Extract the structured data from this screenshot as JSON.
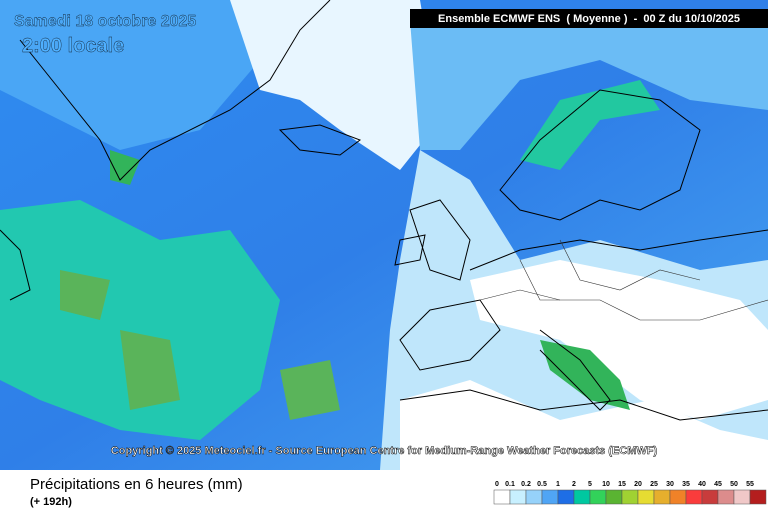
{
  "header": {
    "date": "Samedi 18 octobre 2025",
    "time": "2:00 locale",
    "model": "Ensemble ECMWF ENS  ( Moyenne )  -  00 Z du 10/10/2025"
  },
  "copyright": "Copyright © 2025 Meteociel.fr - Source European Centre for Medium-Range Weather Forecasts (ECMWF)",
  "footer": {
    "title": "Précipitations en 6 heures (mm)",
    "lead": "(+ 192h)"
  },
  "legend": {
    "items": [
      {
        "label": "0",
        "color": "#ffffff"
      },
      {
        "label": "0.1",
        "color": "#c8f0ff"
      },
      {
        "label": "0.2",
        "color": "#96d2fa"
      },
      {
        "label": "0.5",
        "color": "#50a5f5"
      },
      {
        "label": "1",
        "color": "#1e6ee6"
      },
      {
        "label": "2",
        "color": "#00c8a0"
      },
      {
        "label": "5",
        "color": "#32d25a"
      },
      {
        "label": "10",
        "color": "#5ab432"
      },
      {
        "label": "15",
        "color": "#a0d232"
      },
      {
        "label": "20",
        "color": "#e6dc32"
      },
      {
        "label": "25",
        "color": "#e6af2d"
      },
      {
        "label": "30",
        "color": "#f08228"
      },
      {
        "label": "35",
        "color": "#fa3c3c"
      },
      {
        "label": "40",
        "color": "#c83c3c"
      },
      {
        "label": "45",
        "color": "#dc8c8c"
      },
      {
        "label": "50",
        "color": "#f0c8c8"
      },
      {
        "label": "55",
        "color": "#b41e1e"
      }
    ]
  }
}
